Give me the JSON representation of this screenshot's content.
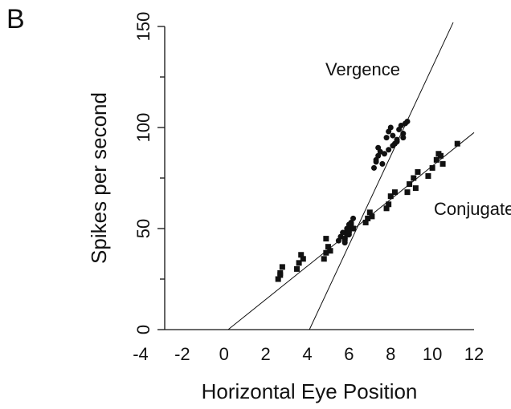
{
  "chart_data": {
    "type": "scatter",
    "panel_label": "B",
    "xlabel": "Horizontal Eye Position",
    "ylabel": "Spikes per second",
    "xlim": [
      -4,
      12
    ],
    "ylim": [
      0,
      150
    ],
    "xticks": [
      -4,
      -2,
      0,
      2,
      4,
      6,
      8,
      10,
      12
    ],
    "yticks": [
      0,
      50,
      100,
      150
    ],
    "yminor": [
      25,
      75,
      125
    ],
    "series": [
      {
        "name": "Vergence",
        "marker": "circle",
        "color": "#111111",
        "x": [
          5.5,
          5.6,
          5.7,
          5.8,
          5.9,
          6.0,
          6.0,
          6.1,
          6.2,
          5.8,
          5.9,
          6.1,
          7.2,
          7.3,
          7.4,
          7.5,
          7.6,
          7.4,
          7.3,
          7.7,
          7.8,
          7.9,
          8.0,
          8.1,
          8.2,
          8.3,
          8.4,
          8.5,
          8.6,
          8.7,
          8.8,
          7.9,
          8.1,
          8.3,
          8.6
        ],
        "values": [
          44,
          46,
          48,
          45,
          50,
          52,
          47,
          53,
          55,
          43,
          49,
          51,
          80,
          84,
          86,
          88,
          82,
          90,
          83,
          87,
          95,
          98,
          100,
          96,
          92,
          94,
          99,
          101,
          97,
          102,
          103,
          89,
          91,
          93,
          95
        ]
      },
      {
        "name": "Conjugate",
        "marker": "square",
        "color": "#111111",
        "x": [
          2.6,
          2.7,
          2.8,
          2.7,
          3.5,
          3.6,
          3.8,
          3.7,
          4.8,
          4.9,
          5.0,
          4.9,
          5.1,
          5.8,
          5.9,
          6.0,
          6.1,
          6.2,
          6.8,
          6.9,
          7.0,
          7.1,
          7.8,
          7.9,
          8.0,
          8.2,
          8.8,
          8.9,
          9.1,
          9.3,
          9.2,
          9.8,
          10.0,
          10.2,
          10.4,
          10.5,
          10.3,
          11.2
        ],
        "values": [
          25,
          28,
          31,
          27,
          30,
          33,
          35,
          37,
          35,
          38,
          41,
          45,
          39,
          45,
          47,
          49,
          52,
          50,
          53,
          55,
          58,
          56,
          60,
          62,
          66,
          68,
          68,
          72,
          75,
          78,
          70,
          76,
          80,
          84,
          86,
          82,
          87,
          92
        ]
      }
    ],
    "fits": [
      {
        "name": "Vergence",
        "x": [
          4.1,
          11.0
        ],
        "values": [
          0,
          152
        ]
      },
      {
        "name": "Conjugate",
        "x": [
          0.2,
          12.0
        ],
        "values": [
          0,
          97.5
        ]
      }
    ]
  }
}
